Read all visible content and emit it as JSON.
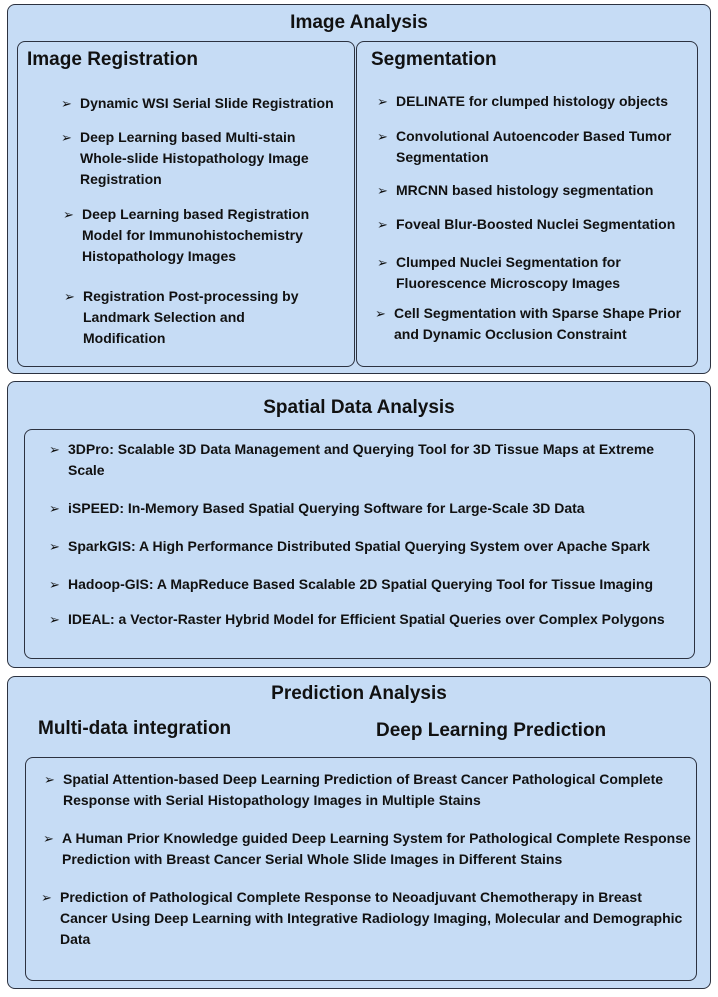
{
  "colors": {
    "panel_fill": "#c6dcf5",
    "border": "#2c3240",
    "text": "#111111"
  },
  "icons": {
    "bullet": "arrow-bullet-icon"
  },
  "bullet_glyph": "➢",
  "image_analysis": {
    "title": "Image Analysis",
    "registration": {
      "title": "Image Registration",
      "items": [
        "Dynamic WSI Serial Slide Registration",
        "Deep Learning based Multi-stain Whole-slide Histopathology Image Registration",
        "Deep Learning based Registration Model for Immunohistochemistry Histopathology Images",
        "Registration Post-processing by Landmark Selection and Modification"
      ]
    },
    "segmentation": {
      "title": "Segmentation",
      "items": [
        "DELINATE for clumped histology objects",
        "Convolutional Autoencoder Based Tumor Segmentation",
        "MRCNN based histology segmentation",
        "Foveal Blur-Boosted Nuclei Segmentation",
        "Clumped Nuclei Segmentation for Fluorescence Microscopy Images",
        "Cell Segmentation with Sparse Shape Prior and Dynamic Occlusion Constraint"
      ]
    }
  },
  "spatial": {
    "title": "Spatial Data Analysis",
    "items": [
      "3DPro: Scalable 3D Data Management and Querying Tool for 3D Tissue Maps at Extreme Scale",
      "iSPEED: In-Memory Based Spatial Querying Software for Large-Scale 3D Data",
      "SparkGIS: A High Performance Distributed Spatial Querying System over Apache Spark",
      "Hadoop-GIS: A MapReduce Based Scalable 2D Spatial Querying Tool for Tissue Imaging",
      "IDEAL: a Vector-Raster Hybrid Model for Efficient Spatial Queries over Complex Polygons"
    ]
  },
  "prediction": {
    "title": "Prediction Analysis",
    "sub1": "Multi-data integration",
    "sub2": "Deep Learning Prediction",
    "items": [
      "Spatial Attention-based Deep Learning Prediction of Breast Cancer Pathological Complete Response with Serial Histopathology Images in Multiple Stains",
      "A Human Prior Knowledge guided Deep Learning System for Pathological Complete Response Prediction with Breast Cancer Serial Whole Slide Images in Different Stains",
      "Prediction of Pathological Complete Response to Neoadjuvant Chemotherapy in Breast Cancer Using Deep Learning with Integrative Radiology Imaging, Molecular and Demographic Data"
    ]
  }
}
